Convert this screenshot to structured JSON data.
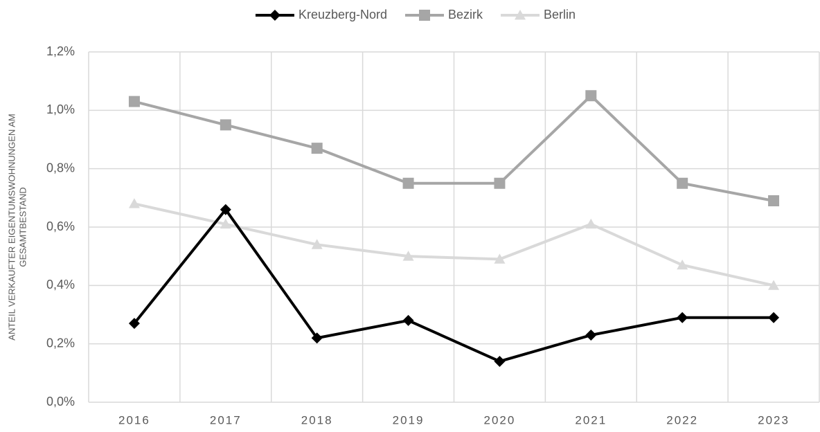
{
  "chart_data": {
    "type": "line",
    "y_label": [
      "ANTEIL VERKAUFTER EIGENTUMSWOHNUNGEN AM",
      "GESAMTBESTAND"
    ],
    "categories": [
      "2016",
      "2017",
      "2018",
      "2019",
      "2020",
      "2021",
      "2022",
      "2023"
    ],
    "series": [
      {
        "name": "Kreuzberg-Nord",
        "color": "#000000",
        "marker": "diamond",
        "values": [
          0.27,
          0.66,
          0.22,
          0.28,
          0.14,
          0.23,
          0.29,
          0.29
        ]
      },
      {
        "name": "Bezirk",
        "color": "#a6a6a6",
        "marker": "square",
        "values": [
          1.03,
          0.95,
          0.87,
          0.75,
          0.75,
          1.05,
          0.75,
          0.69
        ]
      },
      {
        "name": "Berlin",
        "color": "#d9d9d9",
        "marker": "triangle",
        "values": [
          0.68,
          0.61,
          0.54,
          0.5,
          0.49,
          0.61,
          0.47,
          0.4
        ]
      }
    ],
    "ylim": [
      0,
      1.2
    ],
    "yticks": [
      {
        "value": 0,
        "label": "0,0%"
      },
      {
        "value": 0.2,
        "label": "0,2%"
      },
      {
        "value": 0.4,
        "label": "0,4%"
      },
      {
        "value": 0.6,
        "label": "0,6%"
      },
      {
        "value": 0.8,
        "label": "0,8%"
      },
      {
        "value": 1.0,
        "label": "1,0%"
      },
      {
        "value": 1.2,
        "label": "1,2%"
      }
    ],
    "grid": true,
    "legend": "top"
  }
}
